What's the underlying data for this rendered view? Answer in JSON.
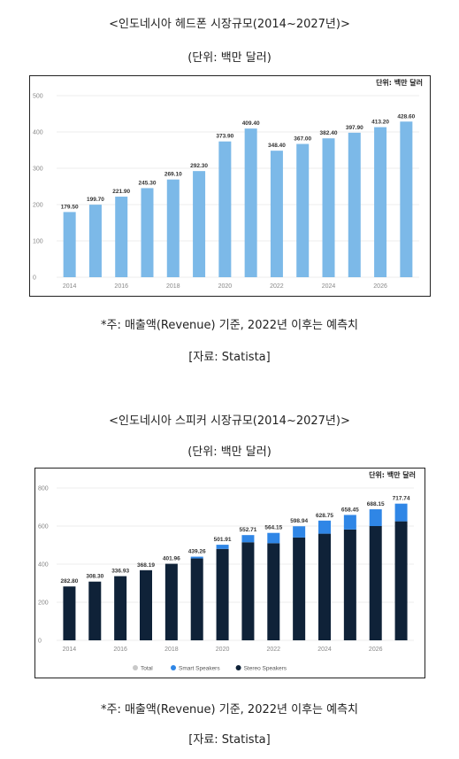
{
  "section1": {
    "title": "<인도네시아 헤드폰 시장규모(2014~2027년)>",
    "unit": "(단위: 백만 달러)",
    "note": "*주: 매출액(Revenue) 기준, 2022년 이후는 예측치",
    "source": "[자료: Statista]"
  },
  "section2": {
    "title": "<인도네시아 스피커 시장규모(2014~2027년)>",
    "unit": "(단위: 백만 달러)",
    "note": "*주: 매출액(Revenue) 기준, 2022년 이후는 예측치",
    "source": "[자료: Statista]"
  },
  "chart_data": [
    {
      "type": "bar",
      "unit_label": "단위: 백만 달러",
      "categories": [
        "2014",
        "2015",
        "2016",
        "2017",
        "2018",
        "2019",
        "2020",
        "2021",
        "2022",
        "2023",
        "2024",
        "2025",
        "2026",
        "2027"
      ],
      "x_tick_labels": [
        "2014",
        "2016",
        "2018",
        "2020",
        "2022",
        "2024",
        "2026"
      ],
      "values": [
        179.5,
        199.7,
        221.9,
        245.3,
        269.1,
        292.3,
        373.9,
        409.4,
        348.4,
        367.0,
        382.4,
        397.9,
        413.2,
        428.6
      ],
      "value_labels": [
        "179.50",
        "199.70",
        "221.90",
        "245.30",
        "269.10",
        "292.30",
        "373.90",
        "409.40",
        "348.40",
        "367.00",
        "382.40",
        "397.90",
        "413.20",
        "428.60"
      ],
      "ylim": [
        0,
        500
      ],
      "y_ticks": [
        "0",
        "100",
        "200",
        "300",
        "400",
        "500"
      ],
      "grid": true,
      "color": "#7cb9e8"
    },
    {
      "type": "bar",
      "stacked": true,
      "unit_label": "단위: 백만 달러",
      "categories": [
        "2014",
        "2015",
        "2016",
        "2017",
        "2018",
        "2019",
        "2020",
        "2021",
        "2022",
        "2023",
        "2024",
        "2025",
        "2026",
        "2027"
      ],
      "x_tick_labels": [
        "2014",
        "2016",
        "2018",
        "2020",
        "2022",
        "2024",
        "2026"
      ],
      "series": [
        {
          "name": "Stereo Speakers",
          "color": "#0f2238",
          "values": [
            282.8,
            308.3,
            336.93,
            368.19,
            401.96,
            430,
            480,
            515,
            510,
            540,
            560,
            582,
            600,
            625
          ]
        },
        {
          "name": "Smart Speakers",
          "color": "#2f86e6",
          "values": [
            0,
            0,
            0,
            0,
            0,
            9.26,
            21.91,
            37.71,
            54.15,
            58.94,
            68.75,
            76.45,
            88.15,
            92.74
          ]
        }
      ],
      "legend_entries": [
        {
          "name": "Total",
          "color": "#c8c8c8"
        },
        {
          "name": "Smart Speakers",
          "color": "#2f86e6"
        },
        {
          "name": "Stereo Speakers",
          "color": "#0f2238"
        }
      ],
      "totals": [
        282.8,
        308.3,
        336.93,
        368.19,
        401.96,
        439.26,
        501.91,
        552.71,
        564.15,
        598.94,
        628.75,
        658.45,
        688.15,
        717.74
      ],
      "total_labels": [
        "282.80",
        "308.30",
        "336.93",
        "368.19",
        "401.96",
        "439.26",
        "501.91",
        "552.71",
        "564.15",
        "598.94",
        "628.75",
        "658.45",
        "688.15",
        "717.74"
      ],
      "ylim": [
        0,
        800
      ],
      "y_ticks": [
        "0",
        "200",
        "400",
        "600",
        "800"
      ],
      "grid": true,
      "legend_position": "bottom-left"
    }
  ]
}
